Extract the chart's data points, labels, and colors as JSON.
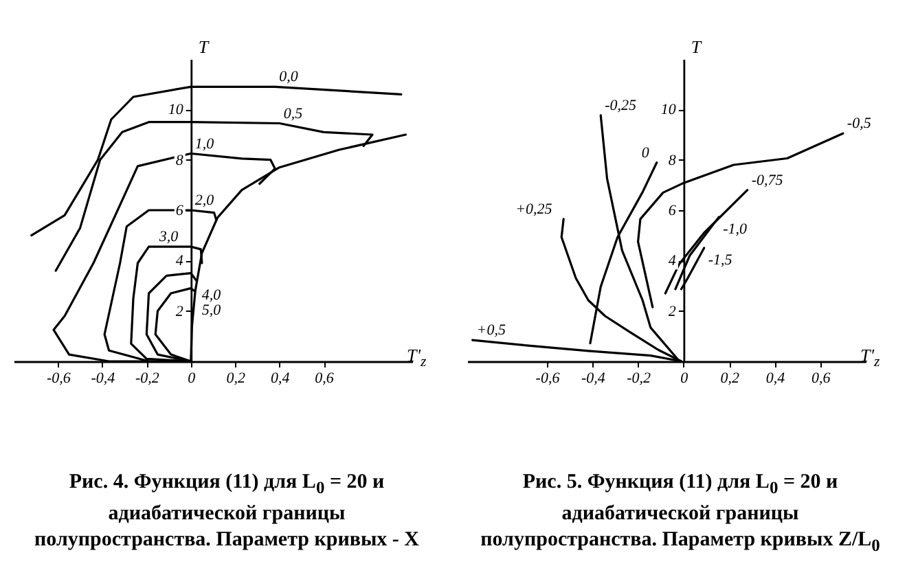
{
  "chart_data": [
    {
      "type": "line",
      "xlabel": "T'$_{z}$",
      "ylabel": "T",
      "xlim": [
        -0.8,
        1.0
      ],
      "ylim": [
        0,
        12
      ],
      "xticks": [
        {
          "value": -0.6,
          "label": "-0,6"
        },
        {
          "value": -0.4,
          "label": "-0,4"
        },
        {
          "value": -0.2,
          "label": "-0,2"
        },
        {
          "value": 0,
          "label": "0"
        },
        {
          "value": 0.2,
          "label": "0,2"
        },
        {
          "value": 0.4,
          "label": "0,4"
        },
        {
          "value": 0.6,
          "label": "0,6"
        }
      ],
      "yticks": [
        2,
        4,
        6,
        8,
        10
      ],
      "series": [
        {
          "name": "0,0",
          "color": "#000000",
          "x": [
            -0.72,
            -0.57,
            -0.42,
            -0.36,
            -0.26,
            0,
            0.38,
            0.95
          ],
          "values": [
            5.0,
            5.8,
            8.0,
            9.6,
            10.5,
            10.9,
            10.9,
            10.6
          ]
        },
        {
          "name": "0,5",
          "color": "#000000",
          "x": [
            -0.61,
            -0.5,
            -0.41,
            -0.31,
            -0.19,
            0,
            0.4,
            0.6,
            0.82,
            0.78
          ],
          "values": [
            3.6,
            5.3,
            8.0,
            9.1,
            9.5,
            9.5,
            9.45,
            9.1,
            9.0,
            8.55
          ]
        },
        {
          "name": "1,0",
          "color": "#000000",
          "x": [
            0.31,
            0.38,
            0.36,
            0.23,
            0,
            -0.24,
            -0.31,
            -0.44,
            -0.57,
            -0.62,
            -0.55,
            -0.37,
            0
          ],
          "values": [
            7.05,
            7.65,
            8.0,
            8.05,
            8.25,
            7.75,
            6.4,
            3.9,
            1.8,
            1.25,
            0.27,
            0,
            0
          ]
        },
        {
          "name": "2,0",
          "color": "#000000",
          "x": [
            0.115,
            0.105,
            0,
            -0.19,
            -0.29,
            -0.32,
            -0.39,
            -0.37,
            -0.19,
            0
          ],
          "values": [
            5.6,
            5.9,
            6.0,
            6.0,
            5.35,
            3.9,
            1.07,
            0.43,
            0,
            0
          ]
        },
        {
          "name": "3,0",
          "color": "#000000",
          "x": [
            0.05,
            0.045,
            0,
            -0.19,
            -0.24,
            -0.26,
            -0.27,
            -0.2,
            0
          ],
          "values": [
            3.9,
            4.45,
            4.55,
            4.55,
            3.9,
            2.5,
            0.7,
            0.1,
            0
          ]
        },
        {
          "name": "4,0",
          "color": "#000000",
          "x": [
            0.025,
            0,
            -0.11,
            -0.19,
            -0.2,
            -0.15,
            0
          ],
          "values": [
            3.2,
            3.5,
            3.4,
            2.7,
            1.07,
            0.27,
            0
          ]
        },
        {
          "name": "5,0",
          "color": "#000000",
          "x": [
            0.015,
            0,
            -0.09,
            -0.15,
            -0.16,
            -0.09,
            0
          ],
          "values": [
            2.8,
            2.9,
            2.7,
            2.0,
            1.07,
            0.27,
            0
          ]
        },
        {
          "color": "#000000",
          "x": [
            0,
            0.005,
            0.02,
            0.05,
            0.12,
            0.23,
            0.4,
            0.67,
            0.97
          ],
          "values": [
            0,
            1.4,
            2.8,
            4.3,
            5.7,
            6.8,
            7.7,
            8.4,
            9.0
          ]
        }
      ],
      "annotations": [
        "Рис. 4. Функция (11) для L$_{0}$ = 20 и адиабатической границы полупространства. Параметр кривых - X"
      ]
    },
    {
      "type": "line",
      "xlabel": "T'$_{z}$",
      "ylabel": "T",
      "xlim": [
        -0.95,
        0.8
      ],
      "ylim": [
        0,
        12
      ],
      "xticks": [
        {
          "value": -0.6,
          "label": "-0,6"
        },
        {
          "value": -0.4,
          "label": "-0,4"
        },
        {
          "value": -0.2,
          "label": "-0,2"
        },
        {
          "value": 0,
          "label": "0"
        },
        {
          "value": 0.2,
          "label": "0,2"
        },
        {
          "value": 0.4,
          "label": "0,4"
        },
        {
          "value": 0.6,
          "label": "0,6"
        }
      ],
      "yticks": [
        2,
        4,
        6,
        8,
        10
      ],
      "series": [
        {
          "name": "+0,5",
          "color": "#000000",
          "x": [
            -0.927,
            -0.69,
            -0.418,
            -0.145,
            -0.01
          ],
          "values": [
            0.84,
            0.63,
            0.41,
            0.23,
            0
          ]
        },
        {
          "name": "+0,25",
          "color": "#000000",
          "x": [
            -0.527,
            -0.536,
            -0.473,
            -0.418,
            -0.345,
            -0.236,
            -0.11,
            -0.01
          ],
          "values": [
            5.65,
            4.93,
            3.3,
            2.42,
            1.8,
            1.16,
            0.45,
            0
          ]
        },
        {
          "name": "-0,25",
          "color": "#000000",
          "x": [
            -0.364,
            -0.336,
            -0.27,
            -0.18,
            -0.145,
            -0.018
          ],
          "values": [
            9.77,
            7.26,
            4.4,
            2.42,
            1.34,
            0
          ]
        },
        {
          "name": "0",
          "color": "#000000",
          "x": [
            -0.41,
            -0.364,
            -0.29,
            -0.18,
            -0.118
          ],
          "values": [
            0.72,
            2.96,
            4.93,
            6.72,
            7.89
          ]
        },
        {
          "name": "-0,5",
          "color": "#000000",
          "x": [
            -0.136,
            -0.2,
            -0.19,
            -0.09,
            0,
            0.22,
            0.455,
            0.7
          ],
          "values": [
            2.15,
            4.75,
            5.65,
            6.7,
            7.08,
            7.8,
            8.06,
            9.05
          ]
        },
        {
          "name": "-0,75",
          "color": "#000000",
          "x": [
            -0.08,
            -0.02,
            0.09,
            0.28
          ],
          "values": [
            2.7,
            3.85,
            5.1,
            6.8
          ]
        },
        {
          "name": "-1,0",
          "color": "#000000",
          "x": [
            -0.036,
            0.027,
            0.155
          ],
          "values": [
            2.87,
            4.2,
            5.73
          ]
        },
        {
          "name": "-1,5",
          "color": "#000000",
          "x": [
            -0.01,
            0.018,
            0.09
          ],
          "values": [
            2.87,
            3.3,
            4.5
          ]
        }
      ],
      "annotations": [
        "Рис. 5. Функция (11) для L$_{0}$ = 20 и адиабатической границы полупространства. Параметр кривых Z/L$_{0}$"
      ]
    }
  ]
}
